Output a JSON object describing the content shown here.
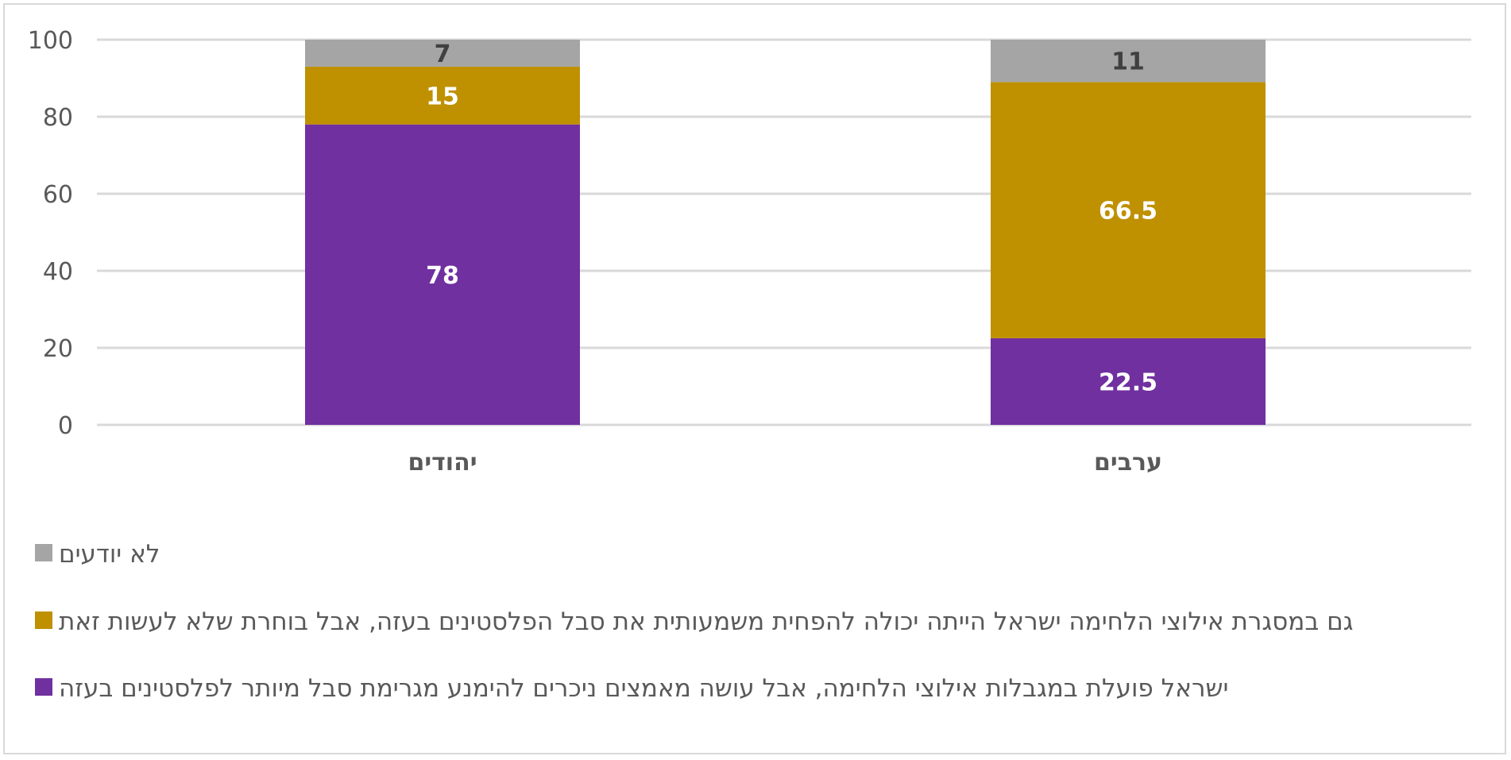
{
  "chart_data": {
    "type": "bar",
    "stacked": true,
    "title": "",
    "xlabel": "",
    "ylabel": "",
    "ylim": [
      0,
      100
    ],
    "yticks": [
      0,
      20,
      40,
      60,
      80,
      100
    ],
    "grid": true,
    "legend_position": "bottom",
    "categories": [
      "יהודים",
      "ערבים"
    ],
    "series": [
      {
        "name": "ישראל פועלת במגבלות אילוצי הלחימה, אבל עושה מאמצים ניכרים להימנע מגרימת סבל מיותר לפלסטינים בעזה",
        "color": "#7030a0",
        "label_color": "#ffffff",
        "values": [
          78,
          22.5
        ]
      },
      {
        "name": "גם במסגרת אילוצי הלחימה ישראל הייתה יכולה להפחית משמעותית את סבל הפלסטינים בעזה, אבל בוחרת שלא לעשות זאת",
        "color": "#bf9000",
        "label_color": "#ffffff",
        "values": [
          15,
          66.5
        ]
      },
      {
        "name": "לא יודעים",
        "color": "#a5a5a5",
        "label_color": "#404040",
        "values": [
          7,
          11
        ]
      }
    ],
    "legend_order": [
      2,
      1,
      0
    ],
    "grid_color": "#d9d9d9",
    "axis_text_color": "#595959"
  }
}
